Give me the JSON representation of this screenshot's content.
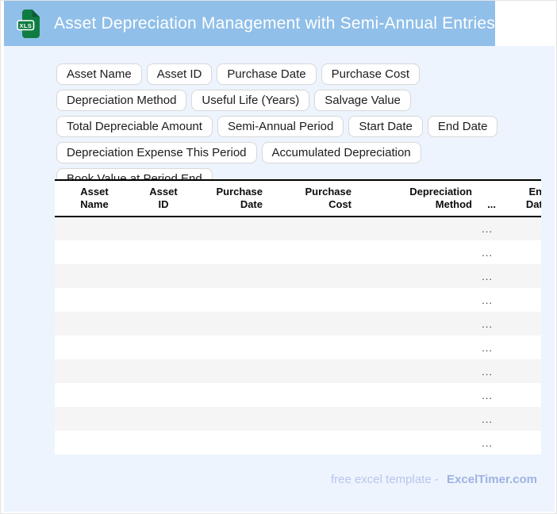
{
  "header": {
    "title": "Asset Depreciation Management with Semi-Annual Entries",
    "file_badge": "XLS"
  },
  "chips": [
    "Asset Name",
    "Asset ID",
    "Purchase Date",
    "Purchase Cost",
    "Depreciation Method",
    "Useful Life (Years)",
    "Salvage Value",
    "Total Depreciable Amount",
    "Semi-Annual Period",
    "Start Date",
    "End Date",
    "Depreciation Expense This Period",
    "Accumulated Depreciation",
    "Book Value at Period End"
  ],
  "table": {
    "columns": [
      {
        "name": "asset-name",
        "lines": [
          "Asset",
          "Name"
        ],
        "align": "center",
        "width": 100
      },
      {
        "name": "asset-id",
        "lines": [
          "Asset",
          "ID"
        ],
        "align": "center",
        "width": 74
      },
      {
        "name": "purchase-date",
        "lines": [
          "Purchase",
          "Date"
        ],
        "align": "right",
        "width": 96
      },
      {
        "name": "purchase-cost",
        "lines": [
          "Purchase",
          "Cost"
        ],
        "align": "right",
        "width": 112
      },
      {
        "name": "depreciation-method",
        "lines": [
          "Depreciation",
          "Method"
        ],
        "align": "right",
        "width": 152
      },
      {
        "name": "collapsed-columns",
        "lines": [
          "..."
        ],
        "align": "right",
        "width": 30
      },
      {
        "name": "end-date",
        "lines": [
          "End",
          "Date"
        ],
        "align": "right",
        "width": 66
      }
    ],
    "rows": [
      "...",
      "...",
      "...",
      "...",
      "...",
      "...",
      "...",
      "...",
      "...",
      "..."
    ]
  },
  "footer": {
    "prefix": "free excel template -",
    "brand": "ExcelTimer.com"
  },
  "colors": {
    "titlebar_blue": "#90bfe9",
    "panel_blue": "#edf4fd",
    "row_stripe": "#f5f5f5",
    "table_line": "#000000",
    "excel_green": "#107c41",
    "excel_green_dark": "#0b5c30",
    "footer_text": "#b9c5ee",
    "footer_brand": "#9fb2e2"
  }
}
